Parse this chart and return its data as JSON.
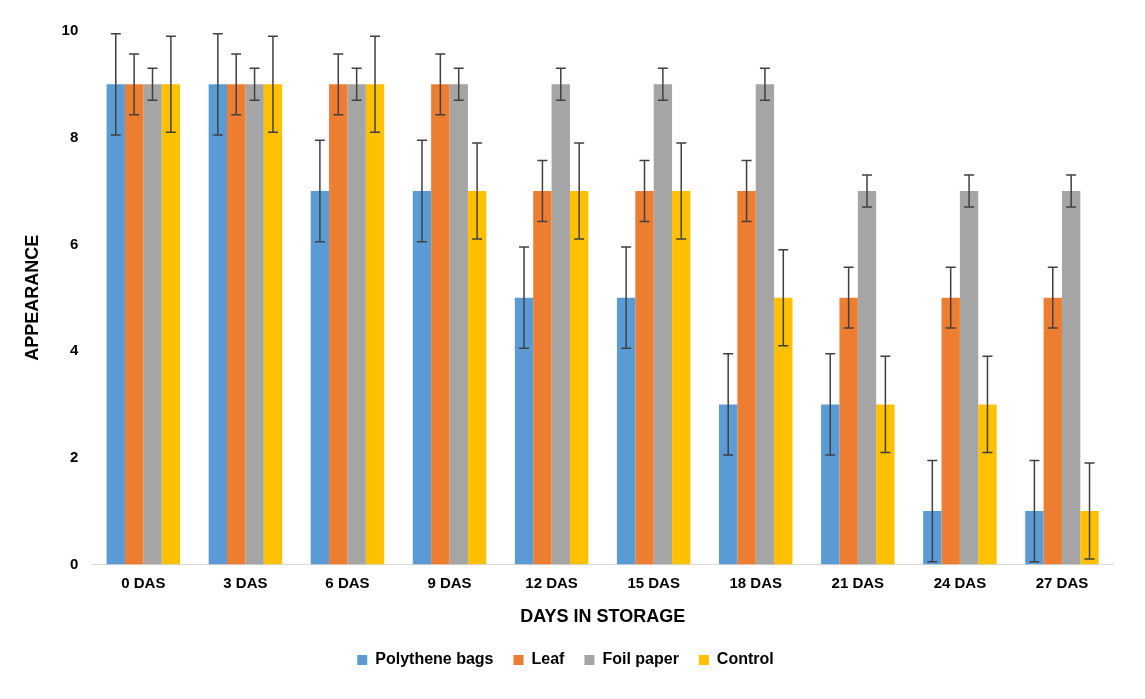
{
  "chart_data": {
    "type": "bar",
    "xlabel": "DAYS IN STORAGE",
    "ylabel": "APPEARANCE",
    "categories": [
      "0 DAS",
      "3 DAS",
      "6 DAS",
      "9 DAS",
      "12 DAS",
      "15 DAS",
      "18 DAS",
      "21 DAS",
      "24 DAS",
      "27 DAS"
    ],
    "series": [
      {
        "name": "Polythene bags",
        "color": "#5b9bd5",
        "values": [
          9,
          9,
          7,
          7,
          5,
          5,
          3,
          3,
          1,
          1
        ],
        "errors": [
          0.95,
          0.95,
          0.95,
          0.95,
          0.95,
          0.95,
          0.95,
          0.95,
          0.95,
          0.95
        ]
      },
      {
        "name": "Leaf",
        "color": "#ed7d31",
        "values": [
          9,
          9,
          9,
          9,
          7,
          7,
          7,
          5,
          5,
          5
        ],
        "errors": [
          0.57,
          0.57,
          0.57,
          0.57,
          0.57,
          0.57,
          0.57,
          0.57,
          0.57,
          0.57
        ]
      },
      {
        "name": "Foil paper",
        "color": "#a5a5a5",
        "values": [
          9,
          9,
          9,
          9,
          9,
          9,
          9,
          7,
          7,
          7
        ],
        "errors": [
          0.3,
          0.3,
          0.3,
          0.3,
          0.3,
          0.3,
          0.3,
          0.3,
          0.3,
          0.3
        ]
      },
      {
        "name": "Control",
        "color": "#ffc000",
        "values": [
          9,
          9,
          9,
          7,
          7,
          7,
          5,
          3,
          3,
          1
        ],
        "errors": [
          0.9,
          0.9,
          0.9,
          0.9,
          0.9,
          0.9,
          0.9,
          0.9,
          0.9,
          0.9
        ]
      }
    ],
    "ylim": [
      0,
      10
    ],
    "yticks": [
      0,
      2,
      4,
      6,
      8,
      10
    ],
    "grid": false,
    "legend": "bottom"
  }
}
